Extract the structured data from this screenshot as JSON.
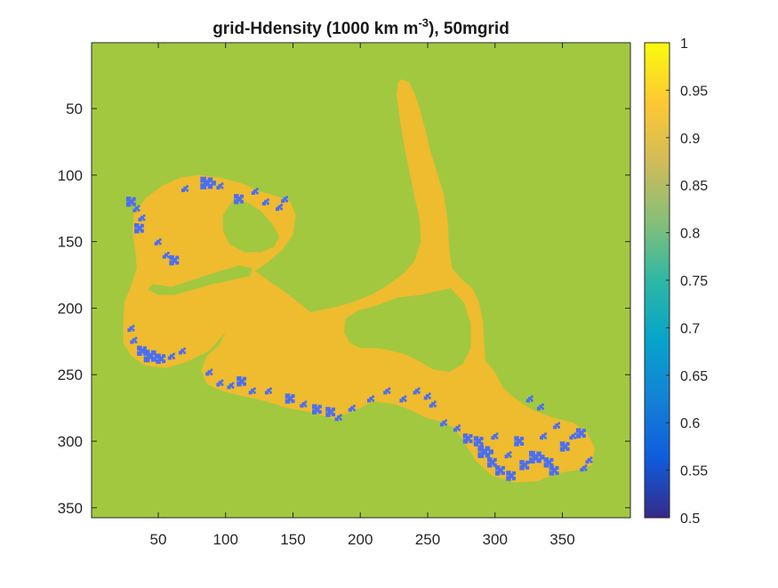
{
  "chart_data": {
    "type": "heatmap",
    "title": {
      "main": "grid-Hdensity (1000 km m",
      "superscript": "-3",
      "suffix": "), 50mgrid"
    },
    "xlabel": "",
    "ylabel": "",
    "xlim": [
      1,
      400
    ],
    "ylim": [
      1,
      357
    ],
    "y_reversed": true,
    "grid": false,
    "x_ticks": [
      50,
      100,
      150,
      200,
      250,
      300,
      350
    ],
    "y_ticks": [
      50,
      100,
      150,
      200,
      250,
      300,
      350
    ],
    "colorbar": {
      "ticks": [
        0.5,
        0.55,
        0.6,
        0.65,
        0.7,
        0.75,
        0.8,
        0.85,
        0.9,
        0.95,
        1
      ],
      "colormap": "parula",
      "range": [
        0.5,
        1
      ],
      "colors": [
        "#352a87",
        "#0f5cdd",
        "#1481d6",
        "#06a4ca",
        "#2eb7a4",
        "#87bf77",
        "#d1bb59",
        "#fec832",
        "#f9fb0e"
      ]
    },
    "regions": {
      "background_value": 0.86,
      "background_color": "#a2c840",
      "glacier_value": 0.91,
      "glacier_color": "#efbb2f",
      "low_density_value": 0.6,
      "low_density_color": "#4c6fef"
    },
    "glacier_outline": [
      [
        230,
        28
      ],
      [
        236,
        30
      ],
      [
        240,
        38
      ],
      [
        244,
        50
      ],
      [
        248,
        65
      ],
      [
        252,
        82
      ],
      [
        257,
        98
      ],
      [
        262,
        115
      ],
      [
        265,
        135
      ],
      [
        266,
        155
      ],
      [
        268,
        170
      ],
      [
        275,
        178
      ],
      [
        283,
        185
      ],
      [
        288,
        195
      ],
      [
        291,
        210
      ],
      [
        292,
        228
      ],
      [
        293,
        240
      ],
      [
        300,
        248
      ],
      [
        306,
        260
      ],
      [
        315,
        268
      ],
      [
        327,
        276
      ],
      [
        342,
        282
      ],
      [
        358,
        286
      ],
      [
        368,
        293
      ],
      [
        374,
        305
      ],
      [
        372,
        318
      ],
      [
        360,
        322
      ],
      [
        346,
        324
      ],
      [
        332,
        330
      ],
      [
        315,
        331
      ],
      [
        298,
        326
      ],
      [
        286,
        315
      ],
      [
        278,
        302
      ],
      [
        270,
        290
      ],
      [
        259,
        285
      ],
      [
        248,
        282
      ],
      [
        236,
        276
      ],
      [
        225,
        272
      ],
      [
        210,
        270
      ],
      [
        196,
        277
      ],
      [
        180,
        283
      ],
      [
        162,
        278
      ],
      [
        146,
        275
      ],
      [
        130,
        270
      ],
      [
        112,
        266
      ],
      [
        97,
        262
      ],
      [
        86,
        257
      ],
      [
        82,
        247
      ],
      [
        86,
        236
      ],
      [
        95,
        228
      ],
      [
        100,
        218
      ],
      [
        88,
        232
      ],
      [
        72,
        240
      ],
      [
        56,
        245
      ],
      [
        40,
        243
      ],
      [
        30,
        236
      ],
      [
        24,
        226
      ],
      [
        24,
        210
      ],
      [
        25,
        195
      ],
      [
        30,
        183
      ],
      [
        34,
        170
      ],
      [
        33,
        157
      ],
      [
        31,
        143
      ],
      [
        32,
        128
      ],
      [
        41,
        117
      ],
      [
        53,
        108
      ],
      [
        66,
        102
      ],
      [
        80,
        100
      ],
      [
        96,
        102
      ],
      [
        112,
        106
      ],
      [
        125,
        112
      ],
      [
        138,
        116
      ],
      [
        148,
        120
      ],
      [
        152,
        130
      ],
      [
        150,
        145
      ],
      [
        142,
        156
      ],
      [
        132,
        165
      ],
      [
        122,
        172
      ],
      [
        130,
        178
      ],
      [
        140,
        185
      ],
      [
        152,
        194
      ],
      [
        163,
        203
      ],
      [
        178,
        200
      ],
      [
        193,
        196
      ],
      [
        208,
        190
      ],
      [
        220,
        183
      ],
      [
        232,
        174
      ],
      [
        240,
        165
      ],
      [
        245,
        150
      ],
      [
        244,
        133
      ],
      [
        240,
        115
      ],
      [
        236,
        95
      ],
      [
        232,
        75
      ],
      [
        229,
        55
      ],
      [
        227,
        40
      ],
      [
        228,
        31
      ]
    ],
    "holes": [
      [
        [
          267,
          185
        ],
        [
          277,
          196
        ],
        [
          282,
          212
        ],
        [
          282,
          230
        ],
        [
          276,
          242
        ],
        [
          266,
          248
        ],
        [
          254,
          246
        ],
        [
          244,
          240
        ],
        [
          234,
          235
        ],
        [
          223,
          232
        ],
        [
          212,
          230
        ],
        [
          200,
          230
        ],
        [
          192,
          226
        ],
        [
          188,
          218
        ],
        [
          189,
          208
        ],
        [
          198,
          202
        ],
        [
          212,
          198
        ],
        [
          228,
          192
        ],
        [
          245,
          190
        ],
        [
          258,
          187
        ]
      ],
      [
        [
          106,
          118
        ],
        [
          117,
          121
        ],
        [
          126,
          127
        ],
        [
          134,
          136
        ],
        [
          140,
          146
        ],
        [
          136,
          154
        ],
        [
          126,
          158
        ],
        [
          114,
          158
        ],
        [
          103,
          152
        ],
        [
          98,
          142
        ],
        [
          98,
          130
        ]
      ],
      [
        [
          46,
          182
        ],
        [
          60,
          184
        ],
        [
          72,
          180
        ],
        [
          84,
          176
        ],
        [
          96,
          172
        ],
        [
          110,
          168
        ],
        [
          120,
          170
        ],
        [
          118,
          176
        ],
        [
          104,
          179
        ],
        [
          90,
          182
        ],
        [
          76,
          186
        ],
        [
          62,
          190
        ],
        [
          50,
          190
        ],
        [
          42,
          186
        ]
      ]
    ],
    "low_density_patches": [
      [
        30,
        120,
        4
      ],
      [
        34,
        125,
        3
      ],
      [
        38,
        132,
        3
      ],
      [
        36,
        140,
        4
      ],
      [
        50,
        150,
        3
      ],
      [
        70,
        110,
        3
      ],
      [
        86,
        106,
        5
      ],
      [
        96,
        108,
        3
      ],
      [
        110,
        118,
        4
      ],
      [
        122,
        112,
        3
      ],
      [
        130,
        120,
        3
      ],
      [
        140,
        124,
        3
      ],
      [
        144,
        118,
        3
      ],
      [
        56,
        160,
        3
      ],
      [
        62,
        164,
        4
      ],
      [
        30,
        215,
        3
      ],
      [
        32,
        224,
        3
      ],
      [
        38,
        232,
        4
      ],
      [
        44,
        236,
        5
      ],
      [
        52,
        238,
        4
      ],
      [
        60,
        236,
        3
      ],
      [
        68,
        232,
        3
      ],
      [
        88,
        248,
        3
      ],
      [
        96,
        256,
        3
      ],
      [
        104,
        258,
        3
      ],
      [
        112,
        255,
        4
      ],
      [
        120,
        262,
        3
      ],
      [
        132,
        262,
        3
      ],
      [
        148,
        268,
        4
      ],
      [
        158,
        272,
        3
      ],
      [
        168,
        276,
        4
      ],
      [
        178,
        278,
        4
      ],
      [
        184,
        282,
        3
      ],
      [
        194,
        275,
        3
      ],
      [
        208,
        268,
        3
      ],
      [
        220,
        262,
        3
      ],
      [
        232,
        268,
        3
      ],
      [
        242,
        262,
        3
      ],
      [
        250,
        266,
        3
      ],
      [
        254,
        272,
        3
      ],
      [
        262,
        286,
        3
      ],
      [
        272,
        290,
        3
      ],
      [
        280,
        298,
        4
      ],
      [
        292,
        308,
        5
      ],
      [
        298,
        316,
        4
      ],
      [
        304,
        322,
        4
      ],
      [
        312,
        326,
        4
      ],
      [
        322,
        318,
        4
      ],
      [
        330,
        312,
        5
      ],
      [
        340,
        316,
        4
      ],
      [
        344,
        322,
        4
      ],
      [
        352,
        304,
        4
      ],
      [
        358,
        296,
        3
      ],
      [
        364,
        294,
        4
      ],
      [
        370,
        314,
        3
      ],
      [
        366,
        320,
        3
      ],
      [
        326,
        268,
        3
      ],
      [
        334,
        274,
        3
      ],
      [
        318,
        300,
        4
      ],
      [
        300,
        296,
        3
      ],
      [
        288,
        300,
        4
      ],
      [
        310,
        310,
        3
      ],
      [
        336,
        296,
        3
      ],
      [
        346,
        288,
        3
      ]
    ]
  }
}
